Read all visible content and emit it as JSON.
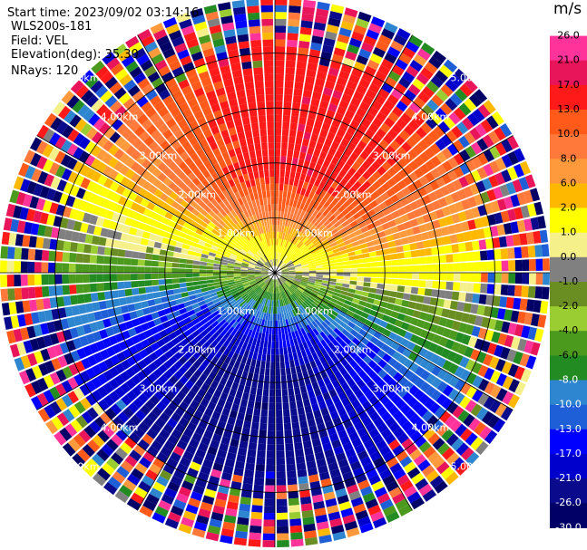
{
  "header": {
    "start_time": "Start time: 2023/09/02 03:14:16",
    "site": "WLS200s-181",
    "field": "Field: VEL",
    "elevation": "Elevation(deg): 35.30",
    "nrays": "NRays: 120"
  },
  "chart_data": {
    "type": "ppi",
    "title": "",
    "unit": "m/s",
    "field": "VEL",
    "n_rays": 120,
    "elevation_deg": 35.3,
    "range_rings_km": [
      1.0,
      2.0,
      3.0,
      4.0
    ],
    "ring_label_texts": [
      "1.00km",
      "2.00km",
      "3.00km",
      "4.00km",
      "5.00km"
    ],
    "max_range_km": 5.0,
    "colorbar_ticks": [
      "26.0",
      "21.0",
      "17.0",
      "13.0",
      "10.0",
      "8.0",
      "6.0",
      "2.0",
      "1.0",
      "0.0",
      "-1.0",
      "-2.0",
      "-4.0",
      "-6.0",
      "-8.0",
      "-10.0",
      "-13.0",
      "-17.0",
      "-21.0",
      "-26.0",
      "-30.0"
    ],
    "colorbar_colors": [
      "#ff3399",
      "#e8155b",
      "#ff1a1a",
      "#ff5a1a",
      "#ff7a3a",
      "#ff9a3c",
      "#ffb800",
      "#ffff00",
      "#f5f08a",
      "#808080",
      "#6b8e23",
      "#9acd32",
      "#4b9a1e",
      "#228b22",
      "#2f86d0",
      "#1e5fd8",
      "#0000ff",
      "#0000cd",
      "#0a0a8c",
      "#000066"
    ],
    "colorbar_values": [
      30,
      26,
      21,
      17,
      13,
      10,
      8,
      6,
      2,
      1,
      0,
      -1,
      -2,
      -4,
      -6,
      -8,
      -10,
      -13,
      -17,
      -21,
      -26,
      -30
    ]
  }
}
